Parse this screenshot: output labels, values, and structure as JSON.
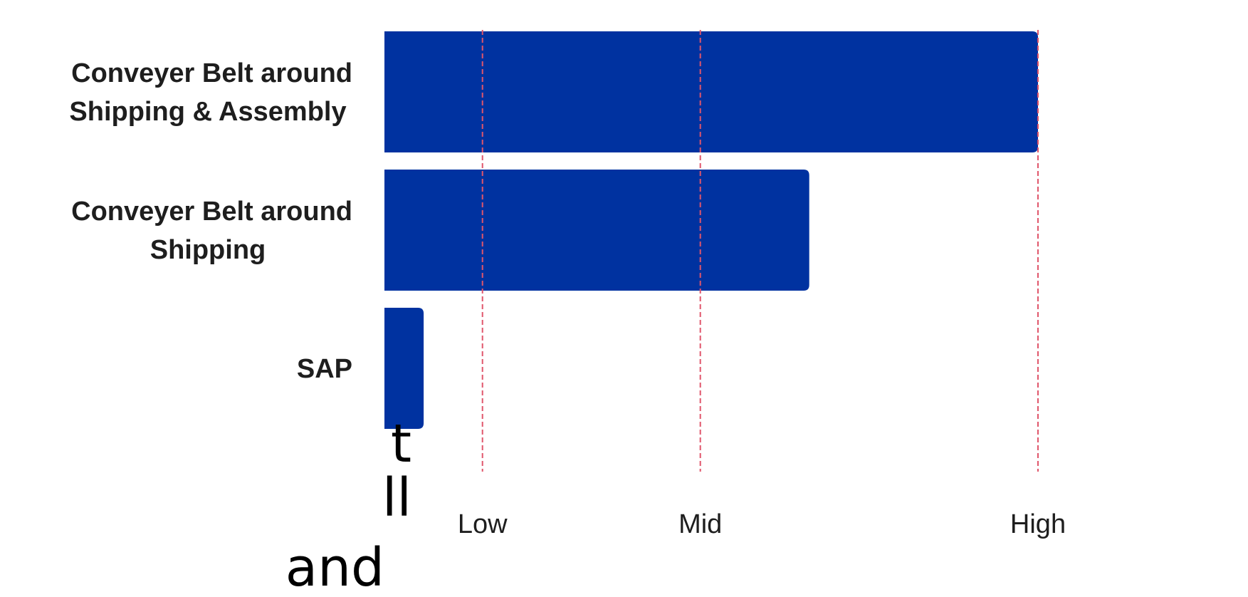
{
  "chart_data": {
    "type": "bar",
    "orientation": "horizontal",
    "categories": [
      "Conveyer Belt around Shipping & Assembly",
      "Conveyer Belt around Shipping",
      "SAP"
    ],
    "category_lines": [
      [
        "Conveyer Belt around",
        "Shipping & Assembly"
      ],
      [
        "Conveyer Belt around",
        "Shipping"
      ],
      [
        "SAP"
      ]
    ],
    "values": [
      3,
      1.95,
      0.18
    ],
    "xlim": [
      0,
      3
    ],
    "ticks": [
      {
        "value": 0.45,
        "label": "Low"
      },
      {
        "value": 1.45,
        "label": "Mid"
      },
      {
        "value": 3,
        "label": "High"
      }
    ],
    "title": "",
    "xlabel": "",
    "ylabel": "",
    "grid": "vertical dashed lines at tick values",
    "legend": "none",
    "colors": {
      "bar": "#0032a0",
      "gridline": "#e0566b",
      "text": "#1e1e1e"
    }
  },
  "side_text": {
    "lines": [
      "t",
      "ll",
      "and"
    ]
  }
}
